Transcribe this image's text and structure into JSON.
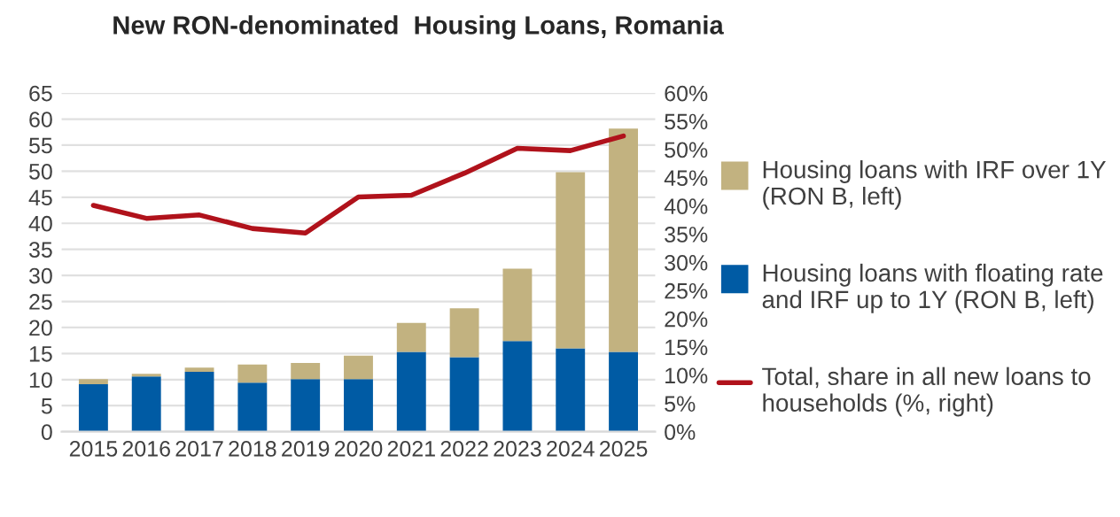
{
  "chart_data": {
    "type": "bar",
    "title": "New RON-denominated  Housing Loans, Romania",
    "stacked": true,
    "categories": [
      "2015",
      "2016",
      "2017",
      "2018",
      "2019",
      "2020",
      "2021",
      "2022",
      "2023",
      "2024",
      "2025"
    ],
    "series": [
      {
        "name": "Housing loans with floating rate and IRF up to 1Y (RON B, left)",
        "color": "#005ba4",
        "values": [
          9.1,
          10.6,
          11.5,
          9.4,
          10.1,
          10.1,
          15.3,
          14.3,
          17.4,
          16.0,
          15.3
        ]
      },
      {
        "name": "Housing loans with IRF over 1Y (RON B, left)",
        "color": "#c2b280",
        "values": [
          1.0,
          0.5,
          0.8,
          3.5,
          3.1,
          4.5,
          5.6,
          9.4,
          13.9,
          33.8,
          42.9
        ]
      },
      {
        "name": "Total, share in all new loans to households (%, right)",
        "type": "line",
        "axis": "y2",
        "color": "#b0121b",
        "values": [
          40.1,
          37.8,
          38.4,
          36.0,
          35.2,
          41.6,
          41.9,
          45.8,
          50.2,
          49.8,
          52.4
        ]
      }
    ],
    "ylim": [
      0,
      65
    ],
    "yticks": [
      0,
      5,
      10,
      15,
      20,
      25,
      30,
      35,
      40,
      45,
      50,
      55,
      60,
      65
    ],
    "y2lim": [
      0,
      60
    ],
    "y2ticks": [
      {
        "value": 0,
        "label": "0%"
      },
      {
        "value": 5,
        "label": "5%"
      },
      {
        "value": 10,
        "label": "10%"
      },
      {
        "value": 15,
        "label": "15%"
      },
      {
        "value": 20,
        "label": "20%"
      },
      {
        "value": 25,
        "label": "25%"
      },
      {
        "value": 30,
        "label": "30%"
      },
      {
        "value": 35,
        "label": "35%"
      },
      {
        "value": 40,
        "label": "40%"
      },
      {
        "value": 45,
        "label": "45%"
      },
      {
        "value": 50,
        "label": "50%"
      },
      {
        "value": 55,
        "label": "55%"
      },
      {
        "value": 60,
        "label": "60%"
      }
    ],
    "grid": "y",
    "legend": "right"
  }
}
